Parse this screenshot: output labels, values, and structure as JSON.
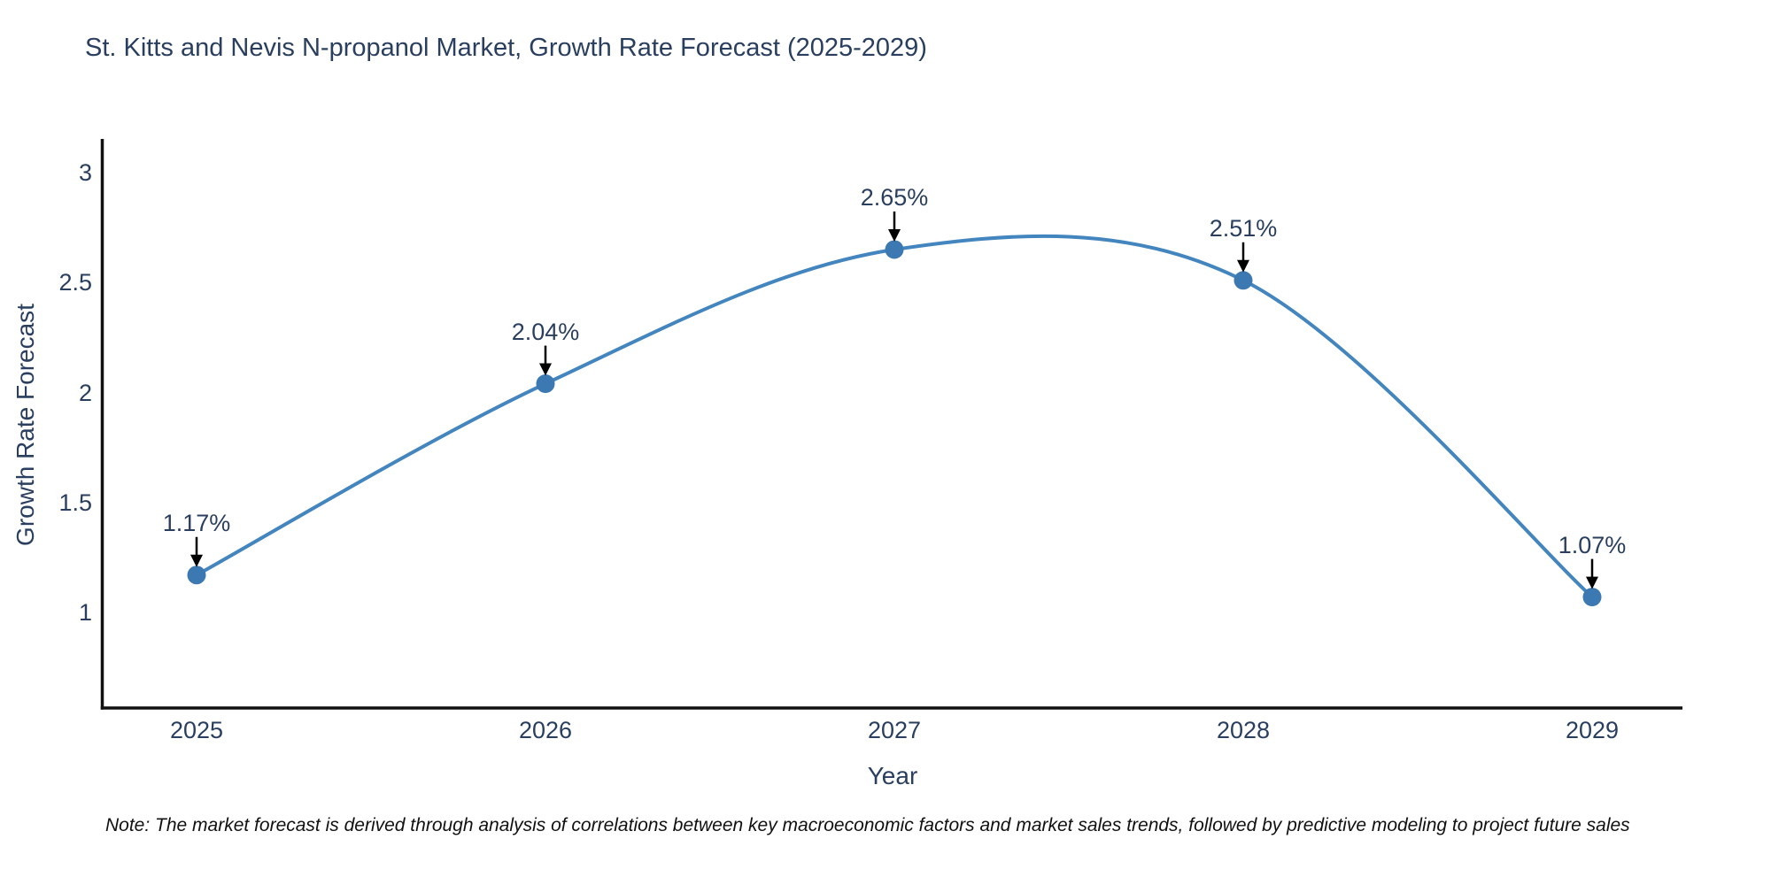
{
  "title": "St. Kitts and Nevis N-propanol Market, Growth Rate Forecast (2025-2029)",
  "note": "Note: The market forecast is derived through analysis of correlations between key macroeconomic factors and market sales trends, followed by predictive modeling to project future sales",
  "chart_data": {
    "type": "line",
    "line_shape": "spline",
    "title": "St. Kitts and Nevis N-propanol Market, Growth Rate Forecast (2025-2029)",
    "xlabel": "Year",
    "ylabel": "Growth Rate Forecast",
    "x": [
      2025,
      2026,
      2027,
      2028,
      2029
    ],
    "values": [
      1.17,
      2.04,
      2.65,
      2.51,
      1.07
    ],
    "point_labels": [
      "1.17%",
      "2.04%",
      "2.65%",
      "2.51%",
      "1.07%"
    ],
    "x_ticks": [
      "2025",
      "2026",
      "2027",
      "2028",
      "2029"
    ],
    "y_ticks": [
      "3",
      "2.5",
      "2",
      "1.5",
      "1"
    ],
    "ylim": [
      0.56,
      3.17
    ],
    "xlim": [
      2024.72,
      2029.26
    ],
    "grid": false,
    "legend": "none",
    "line_color": "#4385be",
    "marker_color": "#3c78b2",
    "arrow_color": "#000000",
    "axis_line_color": "#111111",
    "text_color": "#2a3f5f"
  }
}
